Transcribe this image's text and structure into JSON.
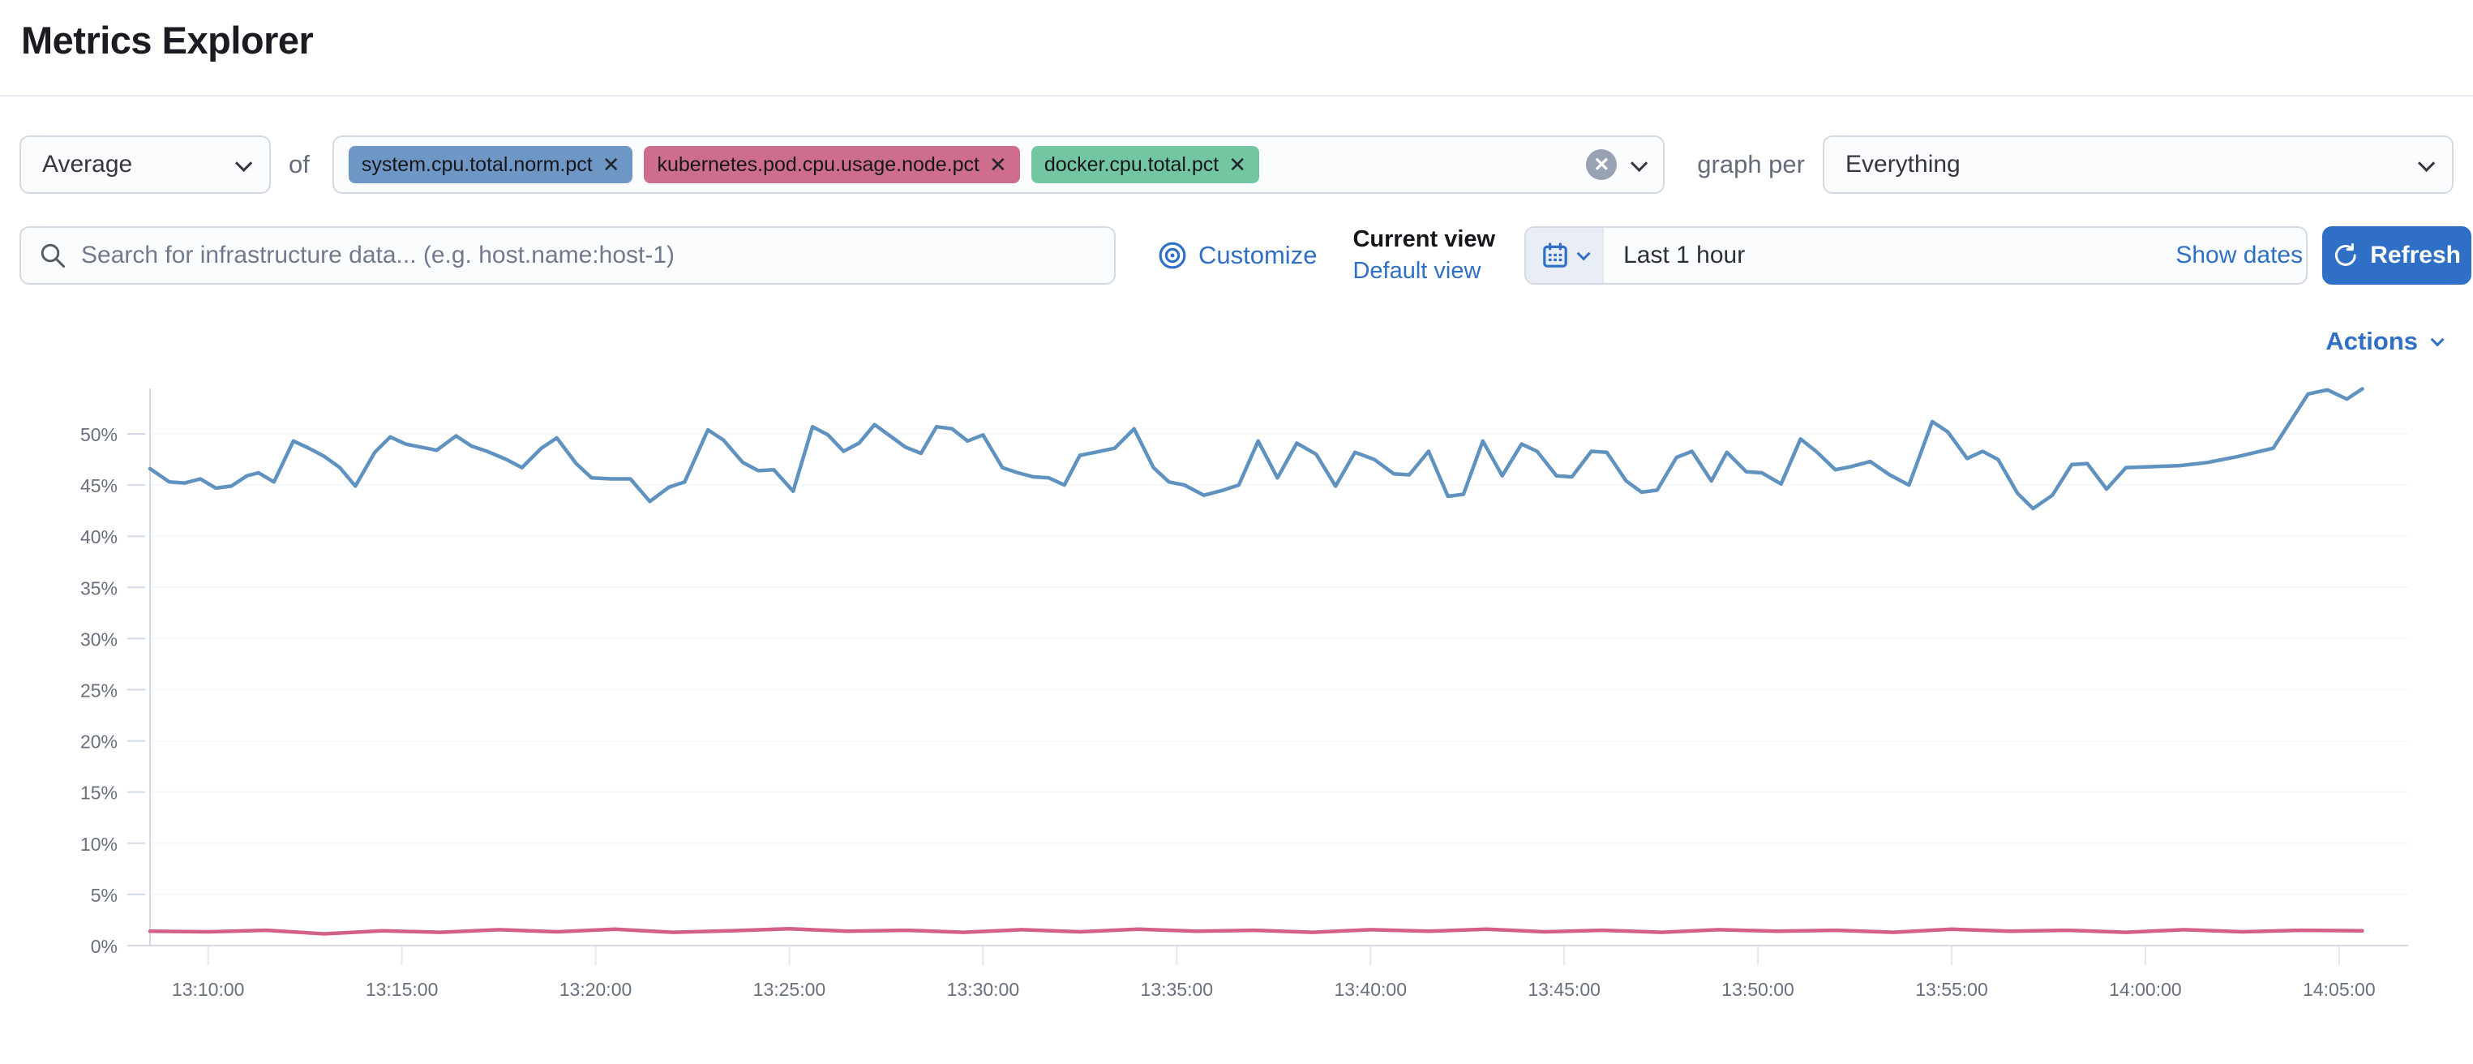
{
  "page": {
    "title": "Metrics Explorer"
  },
  "theme": {
    "accent_blue": "#2f6fc6",
    "input_border": "#d3dae6",
    "axis_label_color": "#69707d"
  },
  "toolbar": {
    "aggregation": {
      "value": "Average"
    },
    "of_label": "of",
    "metrics": [
      {
        "label": "system.cpu.total.norm.pct",
        "color": "#6f97c6"
      },
      {
        "label": "kubernetes.pod.cpu.usage.node.pct",
        "color": "#cf6d8c"
      },
      {
        "label": "docker.cpu.total.pct",
        "color": "#73c6a2"
      }
    ],
    "clear_icon": "x",
    "graph_per_label": "graph per",
    "group_by": {
      "value": "Everything"
    }
  },
  "search": {
    "placeholder": "Search for infrastructure data... (e.g. host.name:host-1)"
  },
  "view_controls": {
    "customize_label": "Customize",
    "current_view_label": "Current view",
    "view_name": "Default view"
  },
  "time_picker": {
    "range_label": "Last 1 hour",
    "show_dates_label": "Show dates",
    "refresh_label": "Refresh"
  },
  "actions": {
    "label": "Actions"
  },
  "chart_data": {
    "type": "line",
    "title": "",
    "xlabel": "",
    "ylabel": "",
    "grid": "faint",
    "legend": "none",
    "ylim": [
      0,
      55
    ],
    "y_ticks": [
      0,
      5,
      10,
      15,
      20,
      25,
      30,
      35,
      40,
      45,
      50
    ],
    "y_tick_suffix": "%",
    "x_unit_note": "t = minutes after 13:00",
    "x_domain": [
      8.2,
      66.8
    ],
    "x_ticks": [
      {
        "t": 10,
        "label": "13:10:00"
      },
      {
        "t": 15,
        "label": "13:15:00"
      },
      {
        "t": 20,
        "label": "13:20:00"
      },
      {
        "t": 25,
        "label": "13:25:00"
      },
      {
        "t": 30,
        "label": "13:30:00"
      },
      {
        "t": 35,
        "label": "13:35:00"
      },
      {
        "t": 40,
        "label": "13:40:00"
      },
      {
        "t": 45,
        "label": "13:45:00"
      },
      {
        "t": 50,
        "label": "13:50:00"
      },
      {
        "t": 55,
        "label": "13:55:00"
      },
      {
        "t": 60,
        "label": "14:00:00"
      },
      {
        "t": 65,
        "label": "14:05:00"
      }
    ],
    "series": [
      {
        "name": "Average system.cpu.total.norm.pct",
        "color": "#6092C0",
        "points": [
          [
            8.5,
            46.6
          ],
          [
            9,
            45.3
          ],
          [
            9.4,
            45.2
          ],
          [
            9.8,
            45.6
          ],
          [
            10.2,
            44.7
          ],
          [
            10.6,
            44.9
          ],
          [
            11,
            45.9
          ],
          [
            11.3,
            46.2
          ],
          [
            11.7,
            45.3
          ],
          [
            12.2,
            49.3
          ],
          [
            12.6,
            48.6
          ],
          [
            13,
            47.8
          ],
          [
            13.4,
            46.7
          ],
          [
            13.8,
            44.9
          ],
          [
            14.3,
            48.2
          ],
          [
            14.7,
            49.7
          ],
          [
            15.1,
            49
          ],
          [
            15.5,
            48.7
          ],
          [
            15.9,
            48.4
          ],
          [
            16.4,
            49.8
          ],
          [
            16.8,
            48.8
          ],
          [
            17.2,
            48.3
          ],
          [
            17.7,
            47.5
          ],
          [
            18.1,
            46.7
          ],
          [
            18.6,
            48.6
          ],
          [
            19,
            49.6
          ],
          [
            19.5,
            47.1
          ],
          [
            19.9,
            45.7
          ],
          [
            20.4,
            45.6
          ],
          [
            20.9,
            45.6
          ],
          [
            21.4,
            43.4
          ],
          [
            21.9,
            44.8
          ],
          [
            22.3,
            45.3
          ],
          [
            22.9,
            50.4
          ],
          [
            23.3,
            49.4
          ],
          [
            23.8,
            47.2
          ],
          [
            24.2,
            46.4
          ],
          [
            24.6,
            46.5
          ],
          [
            25.1,
            44.4
          ],
          [
            25.6,
            50.7
          ],
          [
            26,
            49.9
          ],
          [
            26.4,
            48.3
          ],
          [
            26.8,
            49.1
          ],
          [
            27.2,
            50.9
          ],
          [
            27.6,
            49.8
          ],
          [
            28,
            48.7
          ],
          [
            28.4,
            48.1
          ],
          [
            28.8,
            50.7
          ],
          [
            29.2,
            50.5
          ],
          [
            29.6,
            49.3
          ],
          [
            30,
            49.9
          ],
          [
            30.5,
            46.7
          ],
          [
            30.9,
            46.2
          ],
          [
            31.3,
            45.8
          ],
          [
            31.7,
            45.7
          ],
          [
            32.1,
            45
          ],
          [
            32.5,
            47.9
          ],
          [
            32.9,
            48.2
          ],
          [
            33.4,
            48.6
          ],
          [
            33.9,
            50.5
          ],
          [
            34.4,
            46.7
          ],
          [
            34.8,
            45.3
          ],
          [
            35.2,
            45
          ],
          [
            35.7,
            44
          ],
          [
            36.2,
            44.5
          ],
          [
            36.6,
            45
          ],
          [
            37.1,
            49.3
          ],
          [
            37.6,
            45.7
          ],
          [
            38.1,
            49.1
          ],
          [
            38.6,
            48
          ],
          [
            39.1,
            44.9
          ],
          [
            39.6,
            48.2
          ],
          [
            40.1,
            47.5
          ],
          [
            40.6,
            46.1
          ],
          [
            41,
            46
          ],
          [
            41.5,
            48.3
          ],
          [
            42,
            43.9
          ],
          [
            42.4,
            44.1
          ],
          [
            42.9,
            49.3
          ],
          [
            43.4,
            45.9
          ],
          [
            43.9,
            49
          ],
          [
            44.3,
            48.3
          ],
          [
            44.8,
            45.9
          ],
          [
            45.2,
            45.8
          ],
          [
            45.7,
            48.3
          ],
          [
            46.1,
            48.2
          ],
          [
            46.6,
            45.4
          ],
          [
            47,
            44.3
          ],
          [
            47.4,
            44.5
          ],
          [
            47.9,
            47.7
          ],
          [
            48.3,
            48.3
          ],
          [
            48.8,
            45.4
          ],
          [
            49.2,
            48.2
          ],
          [
            49.7,
            46.3
          ],
          [
            50.1,
            46.2
          ],
          [
            50.6,
            45.1
          ],
          [
            51.1,
            49.5
          ],
          [
            51.5,
            48.3
          ],
          [
            52,
            46.5
          ],
          [
            52.4,
            46.8
          ],
          [
            52.9,
            47.3
          ],
          [
            53.4,
            46
          ],
          [
            53.9,
            45
          ],
          [
            54.5,
            51.2
          ],
          [
            54.9,
            50.2
          ],
          [
            55.4,
            47.6
          ],
          [
            55.8,
            48.3
          ],
          [
            56.2,
            47.5
          ],
          [
            56.7,
            44.2
          ],
          [
            57.1,
            42.7
          ],
          [
            57.6,
            44
          ],
          [
            58.1,
            47
          ],
          [
            58.5,
            47.1
          ],
          [
            59,
            44.6
          ],
          [
            59.5,
            46.7
          ],
          [
            60.2,
            46.8
          ],
          [
            60.9,
            46.9
          ],
          [
            61.6,
            47.2
          ],
          [
            62.4,
            47.8
          ],
          [
            63.3,
            48.6
          ],
          [
            64.2,
            53.9
          ],
          [
            64.7,
            54.3
          ],
          [
            65.2,
            53.4
          ],
          [
            65.6,
            54.4
          ]
        ]
      },
      {
        "name": "Average kubernetes.pod.cpu.usage.node.pct",
        "color": "#D36086",
        "points": [
          [
            8.5,
            1.4
          ],
          [
            10,
            1.35
          ],
          [
            11.5,
            1.5
          ],
          [
            13,
            1.15
          ],
          [
            14.5,
            1.45
          ],
          [
            16,
            1.3
          ],
          [
            17.5,
            1.55
          ],
          [
            19,
            1.35
          ],
          [
            20.5,
            1.6
          ],
          [
            22,
            1.3
          ],
          [
            23.5,
            1.45
          ],
          [
            25,
            1.65
          ],
          [
            26.5,
            1.4
          ],
          [
            28,
            1.5
          ],
          [
            29.5,
            1.3
          ],
          [
            31,
            1.55
          ],
          [
            32.5,
            1.35
          ],
          [
            34,
            1.6
          ],
          [
            35.5,
            1.4
          ],
          [
            37,
            1.5
          ],
          [
            38.5,
            1.3
          ],
          [
            40,
            1.55
          ],
          [
            41.5,
            1.4
          ],
          [
            43,
            1.6
          ],
          [
            44.5,
            1.35
          ],
          [
            46,
            1.5
          ],
          [
            47.5,
            1.3
          ],
          [
            49,
            1.55
          ],
          [
            50.5,
            1.4
          ],
          [
            52,
            1.5
          ],
          [
            53.5,
            1.3
          ],
          [
            55,
            1.6
          ],
          [
            56.5,
            1.4
          ],
          [
            58,
            1.5
          ],
          [
            59.5,
            1.3
          ],
          [
            61,
            1.55
          ],
          [
            62.5,
            1.35
          ],
          [
            64,
            1.5
          ],
          [
            65.6,
            1.45
          ]
        ]
      }
    ]
  }
}
